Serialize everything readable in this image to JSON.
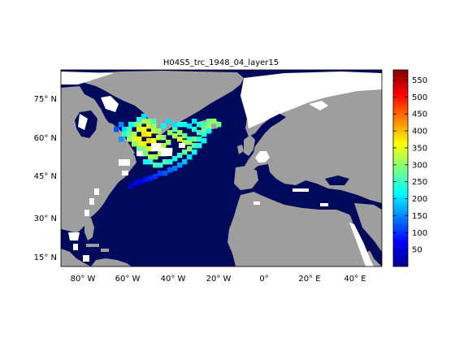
{
  "title": "H04S5_trc_1948_04_layer15",
  "map": {
    "projection": "plate-carree",
    "lon_range": [
      -90,
      52
    ],
    "lat_range": [
      10,
      85
    ],
    "ocean_color": "#000A5A",
    "land_color": "#9E9E9E",
    "nodata_color": "#FFFFFF",
    "x_ticks": [
      {
        "value": -80,
        "label": "80° W"
      },
      {
        "value": -60,
        "label": "60° W"
      },
      {
        "value": -40,
        "label": "40° W"
      },
      {
        "value": -20,
        "label": "20° W"
      },
      {
        "value": 0,
        "label": "0°"
      },
      {
        "value": 20,
        "label": "20° E"
      },
      {
        "value": 40,
        "label": "40° E"
      }
    ],
    "y_ticks": [
      {
        "value": 15,
        "label": "15° N"
      },
      {
        "value": 30,
        "label": "30° N"
      },
      {
        "value": 45,
        "label": "45° N"
      },
      {
        "value": 60,
        "label": "60° N"
      },
      {
        "value": 75,
        "label": "75° N"
      }
    ]
  },
  "colorbar": {
    "min": 0,
    "max": 580,
    "colormap": "jet",
    "ticks": [
      50,
      100,
      150,
      200,
      250,
      300,
      350,
      400,
      450,
      500,
      550
    ]
  }
}
